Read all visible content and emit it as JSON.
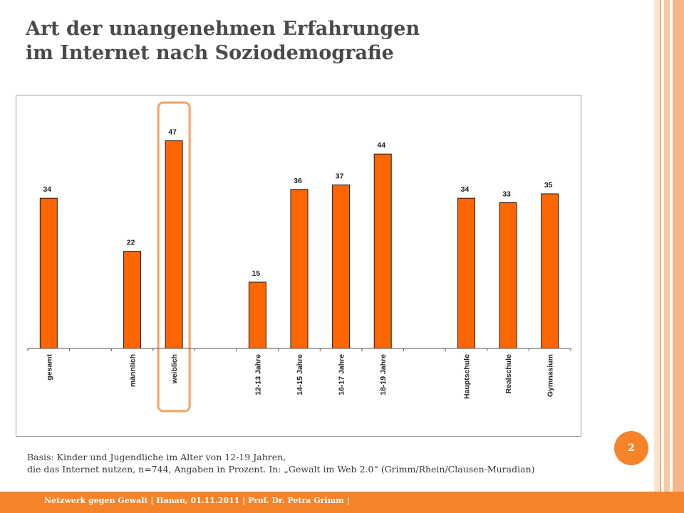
{
  "slide": {
    "title_line1": "Art der unangenehmen Erfahrungen",
    "title_line2": "im Internet nach Soziodemografie",
    "page_number": "2",
    "source_line1": "Basis: Kinder und Jugendliche im Alter von 12-19 Jahren,",
    "source_line2": "die das Internet nutzen, n=744, Angaben in Prozent. In: „Gewalt im Web 2.0“ (Grimm/Rhein/Clausen-Muradian)",
    "footer": "Netzwerk gegen Gewalt | Hanau, 01.11.2011 | Prof. Dr. Petra Grimm |"
  },
  "colors": {
    "accent": "#f5832a",
    "bar_fill": "#ff6600",
    "bar_stroke": "#1a1a1a",
    "highlight": "#f5a260",
    "stripes": [
      "#fbe3d0",
      "#f8c8a4",
      "#f5a878"
    ]
  },
  "chart_data": {
    "type": "bar",
    "title": "",
    "xlabel": "",
    "ylabel": "",
    "ylim": [
      0,
      50
    ],
    "grid": false,
    "highlighted_category": "weiblich",
    "categories": [
      "gesamt",
      "",
      "männlich",
      "weiblich",
      "",
      "12-13 Jahre",
      "14-15 Jahre",
      "16-17 Jahre",
      "18-19 Jahre",
      "",
      "Hauptschule",
      "Realschule",
      "Gymnasium"
    ],
    "values": [
      34,
      null,
      22,
      47,
      null,
      15,
      36,
      37,
      44,
      null,
      34,
      33,
      35
    ]
  }
}
